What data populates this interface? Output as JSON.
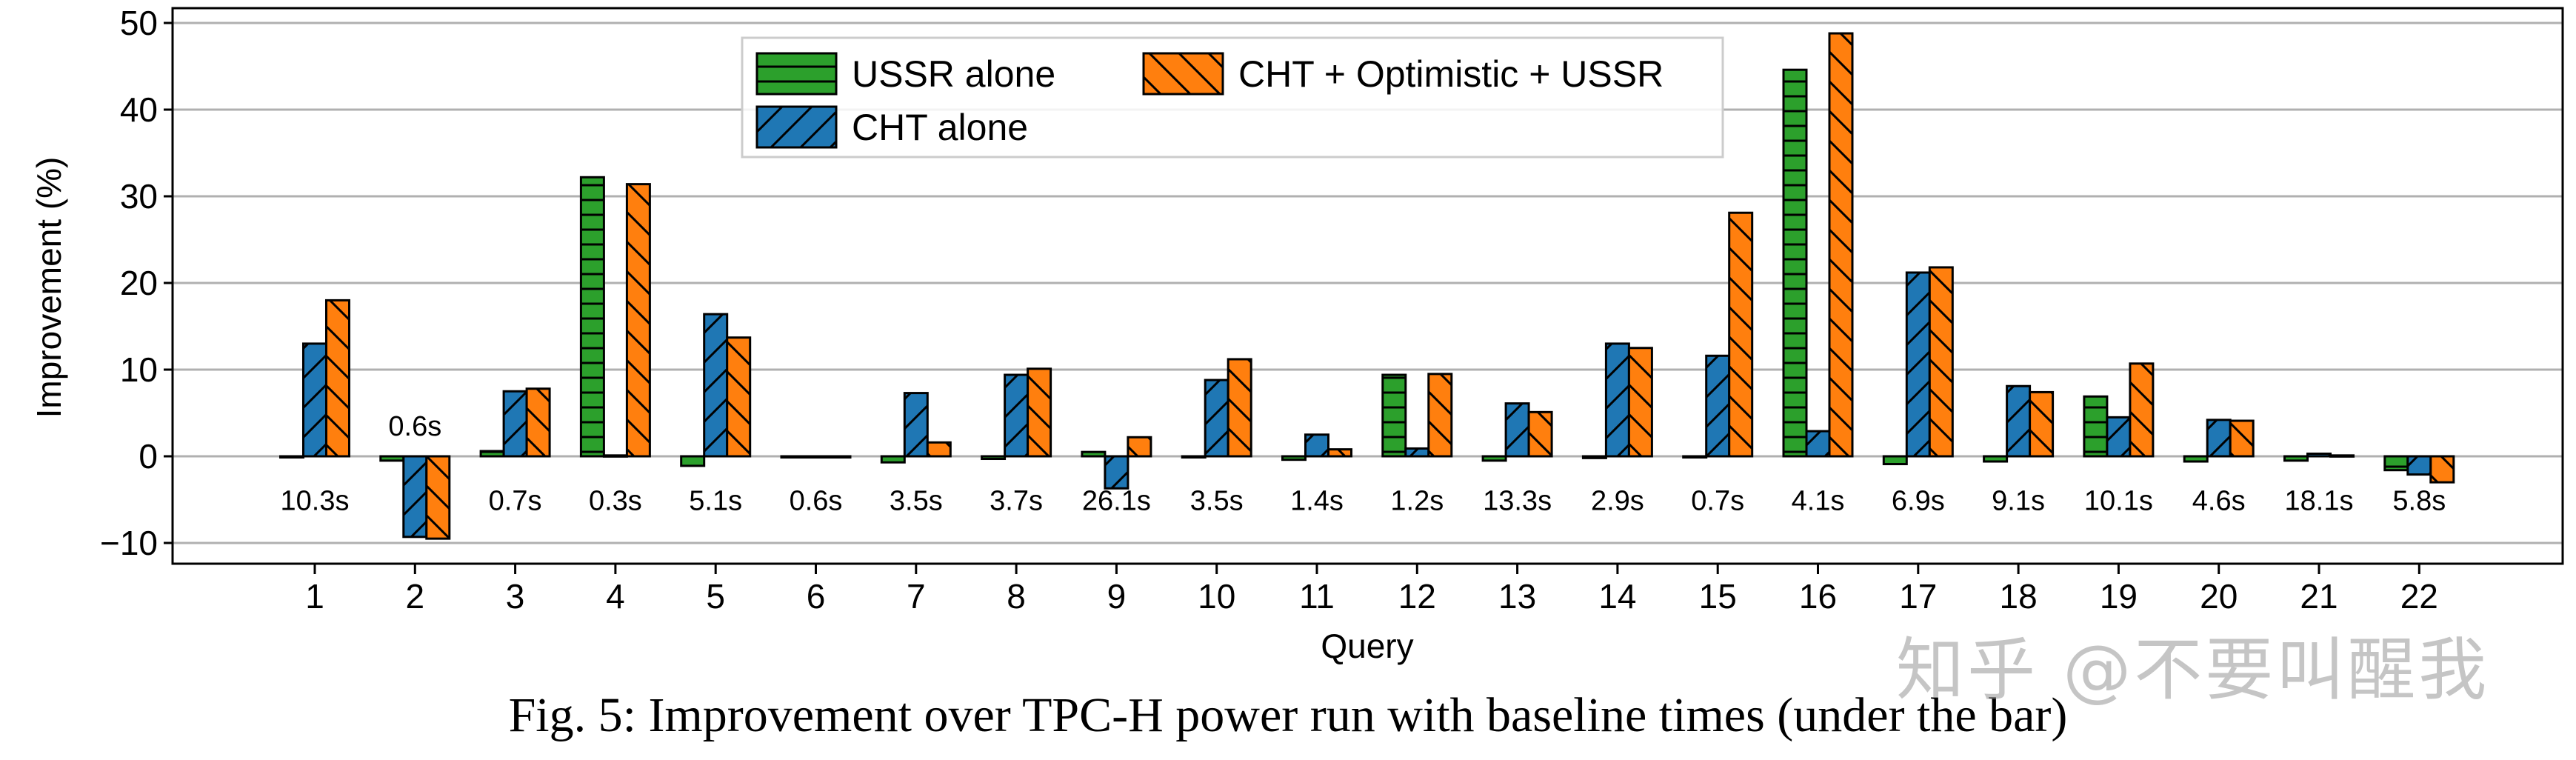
{
  "chart_data": {
    "type": "bar",
    "title": "",
    "xlabel": "Query",
    "ylabel": "Improvement (%)",
    "ylim": [
      -12.5,
      51.5
    ],
    "yticks": [
      -10,
      0,
      10,
      20,
      30,
      40,
      50
    ],
    "ytick_labels": [
      "−10",
      "0",
      "10",
      "20",
      "30",
      "40",
      "50"
    ],
    "grid": "horizontal",
    "legend_placement": "top-center",
    "categories": [
      "1",
      "2",
      "3",
      "4",
      "5",
      "6",
      "7",
      "8",
      "9",
      "10",
      "11",
      "12",
      "13",
      "14",
      "15",
      "16",
      "17",
      "18",
      "19",
      "20",
      "21",
      "22"
    ],
    "baseline_times": [
      "10.3s",
      "0.6s",
      "0.7s",
      "0.3s",
      "5.1s",
      "0.6s",
      "3.5s",
      "3.7s",
      "26.1s",
      "3.5s",
      "1.4s",
      "1.2s",
      "13.3s",
      "2.9s",
      "0.7s",
      "4.1s",
      "6.9s",
      "9.1s",
      "10.1s",
      "4.6s",
      "18.1s",
      "5.8s"
    ],
    "series": [
      {
        "name": "USSR alone",
        "color": "#2ca02c",
        "hatch": "horizontal",
        "values": [
          0,
          -0.5,
          0.6,
          32.2,
          -1.1,
          0,
          -0.7,
          -0.3,
          0.5,
          0,
          -0.4,
          9.4,
          -0.5,
          -0.2,
          0,
          44.6,
          -0.9,
          -0.6,
          6.9,
          -0.6,
          -0.5,
          -1.6
        ]
      },
      {
        "name": "CHT alone",
        "color": "#1f77b4",
        "hatch": "forward-diagonal",
        "values": [
          13.0,
          -9.3,
          7.5,
          0.1,
          16.4,
          0,
          7.3,
          9.4,
          -3.7,
          8.8,
          2.5,
          0.9,
          6.1,
          13.0,
          11.6,
          2.9,
          21.2,
          8.1,
          4.5,
          4.2,
          0.3,
          -2.1
        ]
      },
      {
        "name": "CHT + Optimistic + USSR",
        "color": "#ff7f0e",
        "hatch": "back-diagonal",
        "values": [
          18.0,
          -9.5,
          7.8,
          31.4,
          13.7,
          0,
          1.6,
          10.1,
          2.2,
          11.2,
          0.8,
          9.5,
          5.1,
          12.5,
          28.1,
          48.8,
          21.8,
          7.4,
          10.7,
          4.1,
          0.1,
          -3.0
        ]
      }
    ]
  },
  "caption": "Fig. 5: Improvement over TPC-H power run with baseline times (under the bar)",
  "watermark": "知乎 @不要叫醒我"
}
